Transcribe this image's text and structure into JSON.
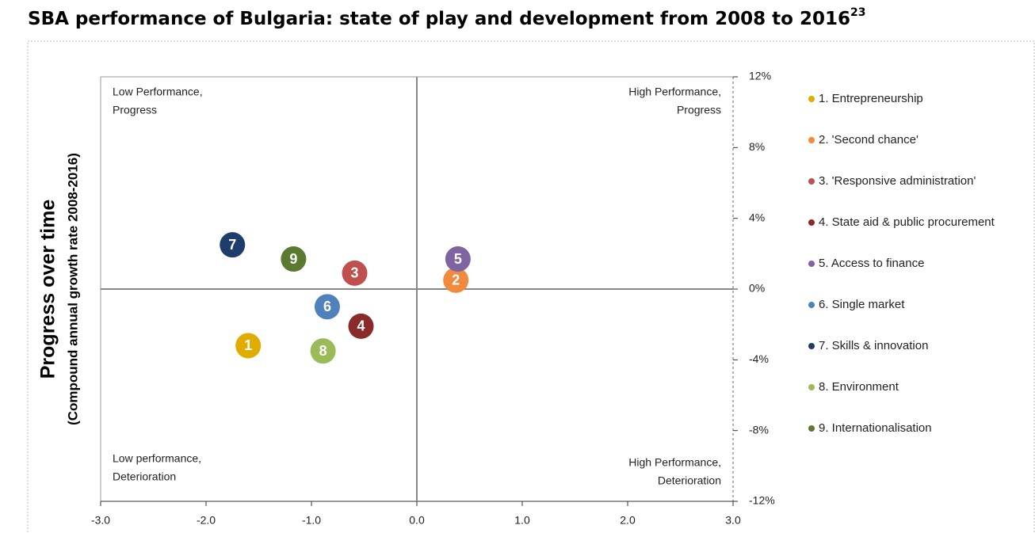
{
  "chart_data": {
    "type": "scatter",
    "title": "SBA performance of Bulgaria: state of play and development from 2008 to 2016",
    "title_footnote": "23",
    "ylabel": "Progress over time",
    "ylabel_sub": "(Compound annual growth rate 2008-2016)",
    "quadrant_labels": [
      [
        "Low Performance,",
        "Progress"
      ],
      [
        "High Performance,",
        "Progress"
      ],
      [
        "Low performance,",
        "Deterioration"
      ],
      [
        "High Performance,",
        "Deterioration"
      ]
    ],
    "xlim": [
      -3,
      3
    ],
    "xticks": [
      {
        "value": -3,
        "label": "-3.0"
      },
      {
        "value": -2,
        "label": "-2.0"
      },
      {
        "value": -1,
        "label": "-1.0"
      },
      {
        "value": 0,
        "label": "0.0"
      },
      {
        "value": 1,
        "label": "1.0"
      },
      {
        "value": 2,
        "label": "2.0"
      },
      {
        "value": 3,
        "label": "3.0"
      }
    ],
    "ylim": [
      -12,
      12
    ],
    "yticks": [
      {
        "value": -12,
        "label": "-12%"
      },
      {
        "value": -8,
        "label": "-8%"
      },
      {
        "value": -4,
        "label": "-4%"
      },
      {
        "value": 0,
        "label": "0%"
      },
      {
        "value": 4,
        "label": "4%"
      },
      {
        "value": 8,
        "label": "8%"
      },
      {
        "value": 12,
        "label": "12%"
      }
    ],
    "series": [
      {
        "name": "1. Entrepreneurship",
        "label": "1",
        "color": "#e0ac00",
        "x": -1.6,
        "y": -3.2
      },
      {
        "name": "2. 'Second chance'",
        "label": "2",
        "color": "#f08a3c",
        "x": 0.37,
        "y": 0.5
      },
      {
        "name": "3. 'Responsive administration'",
        "label": "3",
        "color": "#c0504d",
        "x": -0.59,
        "y": 0.9
      },
      {
        "name": "4. State aid & public procurement",
        "label": "4",
        "color": "#8b2a2a",
        "x": -0.53,
        "y": -2.1
      },
      {
        "name": "5. Access to finance",
        "label": "5",
        "color": "#8064a2",
        "x": 0.39,
        "y": 1.7
      },
      {
        "name": "6. Single market",
        "label": "6",
        "color": "#4f81bd",
        "x": -0.85,
        "y": -1.0
      },
      {
        "name": "7. Skills & innovation",
        "label": "7",
        "color": "#1f3d6b",
        "x": -1.75,
        "y": 2.5
      },
      {
        "name": "8. Environment",
        "label": "8",
        "color": "#9bbb59",
        "x": -0.89,
        "y": -3.5
      },
      {
        "name": "9. Internationalisation",
        "label": "9",
        "color": "#5a7a30",
        "x": -1.17,
        "y": 1.7
      }
    ]
  }
}
